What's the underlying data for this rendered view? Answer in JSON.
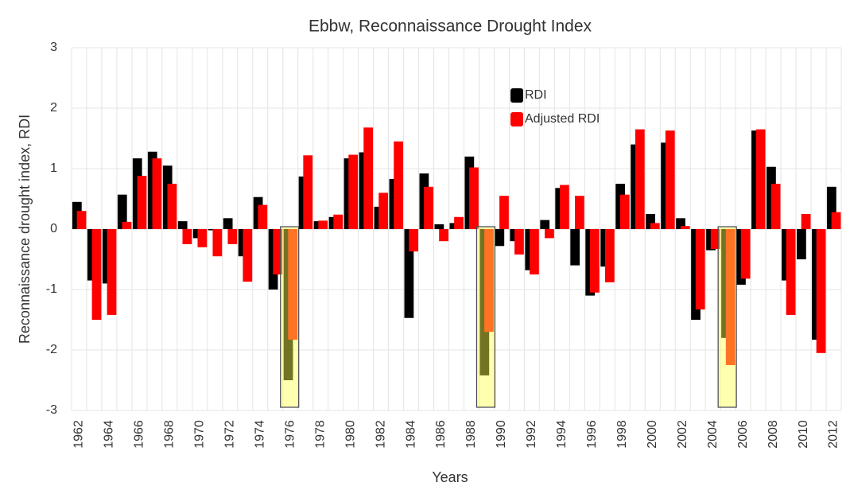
{
  "chart_data": {
    "type": "bar",
    "title": "Ebbw, Reconnaissance Drought Index",
    "x_label": "Years",
    "y_label": "Reconnaissance drought index, RDI",
    "categories": [
      "1962",
      null,
      "1964",
      null,
      "1966",
      null,
      "1968",
      null,
      "1970",
      null,
      "1972",
      null,
      "1974",
      null,
      "1976",
      null,
      "1978",
      null,
      "1980",
      null,
      "1982",
      null,
      "1984",
      null,
      "1986",
      null,
      "1988",
      null,
      "1990",
      null,
      "1992",
      null,
      "1994",
      null,
      "1996",
      null,
      "1998",
      null,
      "2000",
      null,
      "2002",
      null,
      "2004",
      null,
      "2006",
      null,
      "2008",
      null,
      "2010",
      null,
      "2012"
    ],
    "series": [
      {
        "name": "RDI",
        "color": "#000000",
        "values": [
          0.45,
          -0.85,
          -0.9,
          0.57,
          1.17,
          1.28,
          1.05,
          0.13,
          -0.15,
          -0.02,
          0.18,
          -0.45,
          0.53,
          -1.0,
          -2.5,
          0.87,
          0.13,
          0.2,
          1.17,
          1.27,
          0.37,
          0.83,
          -1.47,
          0.92,
          0.08,
          0.1,
          1.2,
          -2.42,
          -0.28,
          -0.2,
          -0.68,
          0.15,
          0.68,
          -0.6,
          -1.1,
          -0.62,
          0.75,
          1.4,
          0.25,
          1.43,
          0.18,
          -1.5,
          -0.35,
          -1.8,
          -0.92,
          1.63,
          1.03,
          -0.85,
          -0.5,
          -1.83,
          0.7
        ]
      },
      {
        "name": "Adjusted RDI",
        "color": "#ff0000",
        "values": [
          0.3,
          -1.5,
          -1.42,
          0.12,
          0.88,
          1.17,
          0.75,
          -0.25,
          -0.3,
          -0.45,
          -0.25,
          -0.87,
          0.4,
          -0.75,
          -1.83,
          1.22,
          0.14,
          0.24,
          1.23,
          1.68,
          0.6,
          1.45,
          -0.37,
          0.7,
          -0.2,
          0.2,
          1.02,
          -1.7,
          0.55,
          -0.42,
          -0.75,
          -0.15,
          0.73,
          0.55,
          -1.05,
          -0.88,
          0.57,
          1.65,
          0.1,
          1.63,
          0.05,
          -1.33,
          -0.33,
          -2.25,
          -0.82,
          1.65,
          0.75,
          -1.42,
          0.25,
          -2.05,
          0.28
        ]
      }
    ],
    "ylim": [
      -3,
      3
    ],
    "yticks": [
      3,
      2,
      1,
      0,
      -1,
      -2,
      -3
    ],
    "grid": true
  }
}
